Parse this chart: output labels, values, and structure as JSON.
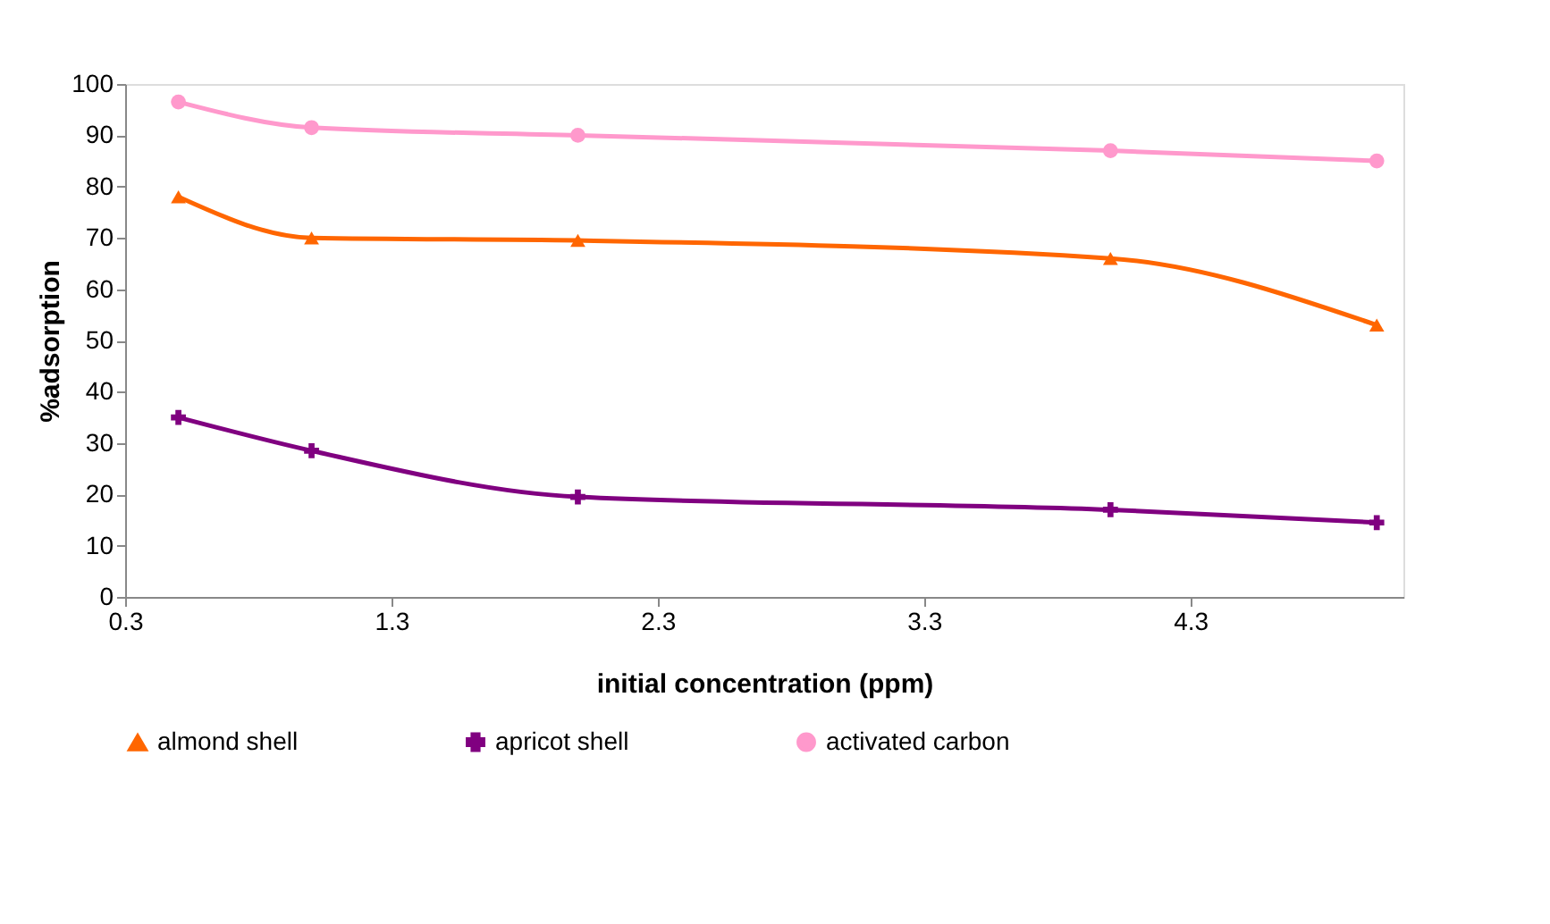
{
  "chart_data": {
    "type": "line",
    "xlabel": "initial concentration (ppm)",
    "ylabel": "%adsorption",
    "x": [
      0.5,
      1.0,
      2.0,
      4.0,
      5.0
    ],
    "series": [
      {
        "name": "almond shell",
        "color": "#ff6600",
        "marker": "triangle",
        "values": [
          78,
          70,
          69.5,
          66,
          53
        ]
      },
      {
        "name": "apricot shell",
        "color": "#800080",
        "marker": "cross",
        "values": [
          35,
          28.5,
          19.5,
          17,
          14.5
        ]
      },
      {
        "name": "activated carbon",
        "color": "#ff99cc",
        "marker": "circle",
        "values": [
          96.5,
          91.5,
          90,
          87,
          85
        ]
      }
    ],
    "xlim": [
      0.3,
      5.1
    ],
    "xticks": [
      0.3,
      1.3,
      2.3,
      3.3,
      4.3
    ],
    "ylim": [
      0,
      100
    ],
    "yticks": [
      0,
      10,
      20,
      30,
      40,
      50,
      60,
      70,
      80,
      90,
      100
    ],
    "grid": false,
    "legend": "bottom",
    "line_style": "solid"
  }
}
